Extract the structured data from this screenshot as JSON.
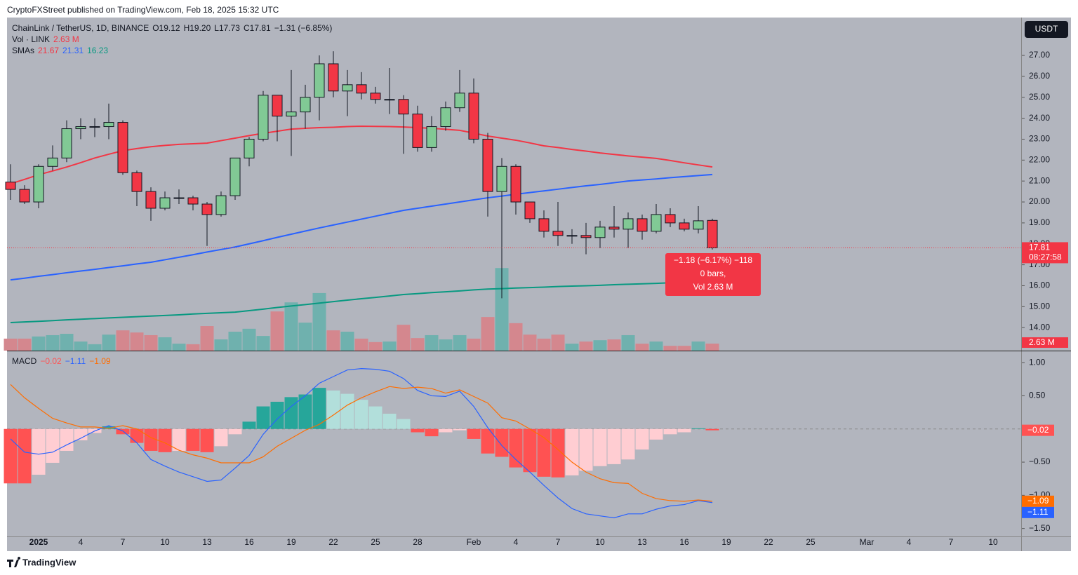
{
  "header": {
    "attribution": "CryptoFXStreet published on TradingView.com, Feb 18, 2025 15:32 UTC",
    "currency": "USDT",
    "footer": "TradingView"
  },
  "chart_data": {
    "type": "candlestick",
    "legend": {
      "symbol": "ChainLink / TetherUS, 1D, BINANCE",
      "open": "O19.12",
      "high": "H19.20",
      "low": "L17.73",
      "close": "C17.81",
      "change": "−1.31 (−6.85%)",
      "volume_title": "Vol · LINK",
      "volume_value": "2.63 M",
      "sma_title": "SMAs",
      "sma_values": [
        "21.67",
        "21.31",
        "16.23"
      ]
    },
    "categories": [
      null,
      null,
      "2025",
      null,
      null,
      "4",
      null,
      null,
      "7",
      null,
      null,
      "10",
      null,
      null,
      "13",
      null,
      null,
      "16",
      null,
      null,
      "19",
      null,
      null,
      "22",
      null,
      null,
      "25",
      null,
      null,
      "28",
      null,
      null,
      null,
      "Feb",
      null,
      null,
      "4",
      null,
      null,
      "7",
      null,
      null,
      "10",
      null,
      null,
      "13",
      null,
      null,
      "16",
      null,
      null,
      "19",
      null,
      null,
      "22",
      null,
      null,
      "25",
      null,
      null,
      null,
      "Mar",
      null,
      null,
      "4",
      null,
      null,
      "7",
      null,
      null,
      "10",
      null
    ],
    "up_color": "#81c995",
    "down_color": "#f23645",
    "open": [
      20.95,
      20.6,
      20.0,
      21.7,
      22.1,
      23.5,
      23.6,
      23.6,
      23.8,
      21.4,
      20.5,
      19.7,
      20.2,
      20.2,
      19.9,
      19.4,
      20.3,
      22.1,
      23.0,
      25.1,
      24.1,
      24.3,
      25.0,
      26.6,
      25.3,
      25.6,
      25.2,
      24.9,
      24.9,
      24.2,
      22.6,
      23.6,
      24.5,
      25.2,
      23.0,
      20.5,
      21.7,
      20.0,
      19.2,
      18.6,
      18.4,
      18.4,
      18.3,
      18.8,
      18.7,
      19.2,
      18.6,
      19.4,
      19.0,
      18.7,
      19.12,
      null,
      null,
      null,
      null,
      null,
      null,
      null,
      null,
      null,
      null,
      null,
      null,
      null,
      null,
      null,
      null,
      null,
      null,
      null,
      null,
      null
    ],
    "high": [
      21.8,
      20.8,
      21.8,
      22.7,
      23.9,
      24.0,
      24.0,
      24.7,
      23.9,
      21.5,
      20.7,
      20.5,
      20.6,
      20.3,
      20.0,
      20.5,
      22.1,
      23.1,
      25.3,
      25.1,
      26.3,
      25.6,
      27.0,
      27.2,
      26.3,
      26.2,
      25.5,
      26.4,
      25.1,
      24.6,
      24.1,
      24.8,
      26.3,
      25.9,
      23.3,
      22.1,
      21.8,
      20.0,
      19.6,
      20.0,
      18.7,
      19.0,
      19.1,
      19.8,
      19.5,
      19.4,
      19.9,
      19.7,
      19.2,
      19.8,
      19.2,
      null,
      null,
      null,
      null,
      null,
      null,
      null,
      null,
      null,
      null,
      null,
      null,
      null,
      null,
      null,
      null,
      null,
      null,
      null,
      null,
      null
    ],
    "low": [
      20.1,
      19.9,
      19.7,
      21.5,
      21.9,
      23.0,
      23.1,
      23.0,
      21.3,
      19.8,
      19.1,
      19.6,
      19.9,
      19.6,
      17.9,
      19.3,
      20.1,
      21.7,
      22.9,
      22.9,
      22.2,
      23.5,
      23.9,
      25.0,
      24.1,
      24.9,
      24.7,
      24.2,
      22.3,
      22.4,
      22.4,
      23.4,
      24.3,
      22.8,
      19.3,
      15.4,
      19.4,
      19.0,
      18.3,
      17.9,
      18.0,
      17.5,
      17.8,
      18.3,
      17.8,
      18.2,
      18.5,
      18.8,
      18.6,
      18.5,
      17.73,
      null,
      null,
      null,
      null,
      null,
      null,
      null,
      null,
      null,
      null,
      null,
      null,
      null,
      null,
      null,
      null,
      null,
      null,
      null,
      null,
      null
    ],
    "close": [
      20.6,
      20.0,
      21.7,
      22.1,
      23.5,
      23.6,
      23.6,
      23.8,
      21.4,
      20.5,
      19.7,
      20.2,
      20.2,
      19.9,
      19.4,
      20.3,
      22.1,
      23.0,
      25.1,
      24.1,
      24.3,
      25.0,
      26.6,
      25.3,
      25.6,
      25.2,
      24.9,
      24.9,
      24.2,
      22.6,
      23.6,
      24.5,
      25.2,
      23.0,
      20.5,
      21.7,
      20.0,
      19.2,
      18.6,
      18.4,
      18.4,
      18.3,
      18.8,
      18.7,
      19.2,
      18.6,
      19.4,
      19.0,
      18.7,
      19.1,
      17.81,
      null,
      null,
      null,
      null,
      null,
      null,
      null,
      null,
      null,
      null,
      null,
      null,
      null,
      null,
      null,
      null,
      null,
      null,
      null,
      null,
      null
    ],
    "volume": {
      "ylim": [
        0,
        125
      ],
      "up_color": "#6fb1ae",
      "down_color": "#d4878e",
      "label_color": "#f23645",
      "values": [
        4.5,
        4.5,
        5.3,
        5.8,
        6.3,
        3.4,
        2.4,
        6.0,
        7.6,
        6.8,
        5.8,
        5.0,
        2.6,
        2.4,
        9.2,
        4.2,
        7.1,
        8.2,
        5.5,
        14.7,
        18.1,
        10.5,
        21.6,
        7.6,
        7.1,
        4.5,
        3.2,
        3.4,
        9.7,
        4.7,
        5.8,
        4.2,
        5.8,
        4.5,
        12.6,
        31.0,
        10.3,
        6.0,
        4.5,
        6.0,
        2.6,
        3.4,
        3.9,
        4.2,
        5.8,
        2.6,
        3.4,
        1.8,
        1.8,
        3.4,
        2.63,
        null,
        null,
        null,
        null,
        null,
        null,
        null,
        null,
        null,
        null,
        null,
        null,
        null,
        null,
        null,
        null,
        null,
        null,
        null,
        null,
        null
      ]
    },
    "sma": [
      {
        "color": "#f23645",
        "values": [
          20.87,
          21.08,
          21.3,
          21.48,
          21.67,
          21.88,
          22.1,
          22.28,
          22.45,
          22.55,
          22.64,
          22.7,
          22.75,
          22.78,
          22.81,
          22.93,
          23.05,
          23.17,
          23.28,
          23.38,
          23.48,
          23.52,
          23.55,
          23.57,
          23.6,
          23.62,
          23.61,
          23.6,
          23.58,
          23.55,
          23.52,
          23.47,
          23.42,
          23.29,
          23.15,
          23.05,
          22.95,
          22.82,
          22.68,
          22.6,
          22.51,
          22.43,
          22.34,
          22.27,
          22.2,
          22.14,
          22.08,
          21.98,
          21.87,
          21.77,
          21.67,
          null,
          null,
          null,
          null,
          null,
          null,
          null,
          null,
          null,
          null,
          null,
          null,
          null,
          null,
          null,
          null,
          null,
          null,
          null,
          null,
          null
        ]
      },
      {
        "color": "#2962ff",
        "values": [
          16.28,
          16.36,
          16.45,
          16.53,
          16.62,
          16.7,
          16.78,
          16.87,
          16.95,
          17.04,
          17.12,
          17.24,
          17.36,
          17.48,
          17.61,
          17.73,
          17.85,
          18.0,
          18.15,
          18.31,
          18.46,
          18.61,
          18.76,
          18.9,
          19.04,
          19.18,
          19.32,
          19.46,
          19.6,
          19.7,
          19.8,
          19.9,
          20.0,
          20.1,
          20.2,
          20.28,
          20.37,
          20.45,
          20.53,
          20.61,
          20.69,
          20.77,
          20.84,
          20.92,
          21.0,
          21.05,
          21.1,
          21.16,
          21.21,
          21.26,
          21.31,
          null,
          null,
          null,
          null,
          null,
          null,
          null,
          null,
          null,
          null,
          null,
          null,
          null,
          null,
          null,
          null,
          null,
          null,
          null,
          null,
          null
        ]
      },
      {
        "color": "#089981",
        "values": [
          14.24,
          14.27,
          14.3,
          14.33,
          14.37,
          14.4,
          14.43,
          14.46,
          14.49,
          14.52,
          14.55,
          14.58,
          14.61,
          14.65,
          14.68,
          14.71,
          14.74,
          14.81,
          14.88,
          14.96,
          15.03,
          15.1,
          15.17,
          15.24,
          15.31,
          15.38,
          15.44,
          15.51,
          15.58,
          15.62,
          15.67,
          15.71,
          15.75,
          15.8,
          15.84,
          15.86,
          15.89,
          15.91,
          15.93,
          15.96,
          15.98,
          16.0,
          16.02,
          16.05,
          16.07,
          16.09,
          16.11,
          16.14,
          16.17,
          16.2,
          16.23,
          null,
          null,
          null,
          null,
          null,
          null,
          null,
          null,
          null,
          null,
          null,
          null,
          null,
          null,
          null,
          null,
          null,
          null,
          null,
          null,
          null
        ]
      }
    ],
    "ylim": [
      12.9,
      28.81
    ],
    "yticks": [
      {
        "value": 14,
        "label": "14.00"
      },
      {
        "value": 15,
        "label": "15.00"
      },
      {
        "value": 16,
        "label": "16.00"
      },
      {
        "value": 17,
        "label": "17.00"
      },
      {
        "value": 18,
        "label": "18.00"
      },
      {
        "value": 19,
        "label": "19.00"
      },
      {
        "value": 20,
        "label": "20.00"
      },
      {
        "value": 21,
        "label": "21.00"
      },
      {
        "value": 22,
        "label": "22.00"
      },
      {
        "value": 23,
        "label": "23.00"
      },
      {
        "value": 24,
        "label": "24.00"
      },
      {
        "value": 25,
        "label": "25.00"
      },
      {
        "value": 26,
        "label": "26.00"
      },
      {
        "value": 27,
        "label": "27.00"
      }
    ],
    "last_price": {
      "value": 17.81,
      "label": "17.81",
      "countdown": "08:27:58",
      "color": "#f23645"
    },
    "tooltip": {
      "lines": [
        "−1.18 (−6.17%) −118",
        "0 bars,",
        "Vol 2.63 M"
      ],
      "color": "#f23645"
    },
    "macd": {
      "title": "MACD",
      "legend": [
        "−0.02",
        "−1.11",
        "−1.09"
      ],
      "ylim": [
        -1.62,
        1.16
      ],
      "yticks": [
        {
          "value": 1,
          "label": "1.00"
        },
        {
          "value": 0.5,
          "label": "0.50"
        },
        {
          "value": -0.5,
          "label": "−0.50"
        },
        {
          "value": -1,
          "label": "−1.00"
        },
        {
          "value": -1.5,
          "label": "−1.50"
        }
      ],
      "histogram_colors": [
        "#26a69a",
        "#b2dfdb",
        "#ff5252",
        "#ffcdd2"
      ],
      "histogram": [
        -0.82,
        -0.82,
        -0.69,
        -0.51,
        -0.33,
        -0.17,
        -0.06,
        0.04,
        -0.08,
        -0.21,
        -0.33,
        -0.35,
        -0.33,
        -0.33,
        -0.35,
        -0.26,
        -0.08,
        0.11,
        0.34,
        0.41,
        0.48,
        0.52,
        0.62,
        0.58,
        0.53,
        0.44,
        0.34,
        0.23,
        0.15,
        -0.05,
        -0.11,
        -0.05,
        -0.02,
        -0.15,
        -0.37,
        -0.42,
        -0.58,
        -0.65,
        -0.72,
        -0.73,
        -0.7,
        -0.63,
        -0.56,
        -0.53,
        -0.46,
        -0.31,
        -0.16,
        -0.08,
        -0.05,
        0.01,
        -0.02,
        null,
        null,
        null,
        null,
        null,
        null,
        null,
        null,
        null,
        null,
        null,
        null,
        null,
        null,
        null,
        null,
        null,
        null,
        null,
        null,
        null
      ],
      "macd": {
        "color": "#2962ff",
        "values": [
          -0.15,
          -0.35,
          -0.38,
          -0.35,
          -0.24,
          -0.14,
          -0.03,
          0.05,
          -0.03,
          -0.21,
          -0.46,
          -0.56,
          -0.65,
          -0.72,
          -0.79,
          -0.77,
          -0.59,
          -0.4,
          -0.08,
          0.15,
          0.34,
          0.5,
          0.69,
          0.79,
          0.89,
          0.91,
          0.9,
          0.87,
          0.76,
          0.58,
          0.5,
          0.49,
          0.57,
          0.34,
          0.02,
          -0.25,
          -0.46,
          -0.65,
          -0.85,
          -1.04,
          -1.2,
          -1.28,
          -1.31,
          -1.34,
          -1.28,
          -1.28,
          -1.21,
          -1.16,
          -1.14,
          -1.08,
          -1.11,
          null,
          null,
          null,
          null,
          null,
          null,
          null,
          null,
          null,
          null,
          null,
          null,
          null,
          null,
          null,
          null,
          null,
          null,
          null,
          null,
          null
        ]
      },
      "signal": {
        "color": "#ff6d00",
        "values": [
          0.67,
          0.47,
          0.31,
          0.16,
          0.09,
          0.03,
          0.03,
          0.01,
          0.05,
          0.0,
          -0.13,
          -0.21,
          -0.32,
          -0.39,
          -0.44,
          -0.51,
          -0.51,
          -0.51,
          -0.42,
          -0.26,
          -0.14,
          -0.02,
          0.07,
          0.21,
          0.36,
          0.47,
          0.56,
          0.64,
          0.61,
          0.63,
          0.61,
          0.54,
          0.59,
          0.49,
          0.39,
          0.17,
          0.12,
          0.0,
          -0.13,
          -0.31,
          -0.5,
          -0.65,
          -0.75,
          -0.81,
          -0.82,
          -0.97,
          -1.05,
          -1.08,
          -1.09,
          -1.07,
          -1.09,
          null,
          null,
          null,
          null,
          null,
          null,
          null,
          null,
          null,
          null,
          null,
          null,
          null,
          null,
          null,
          null,
          null,
          null,
          null,
          null,
          null
        ]
      }
    }
  }
}
